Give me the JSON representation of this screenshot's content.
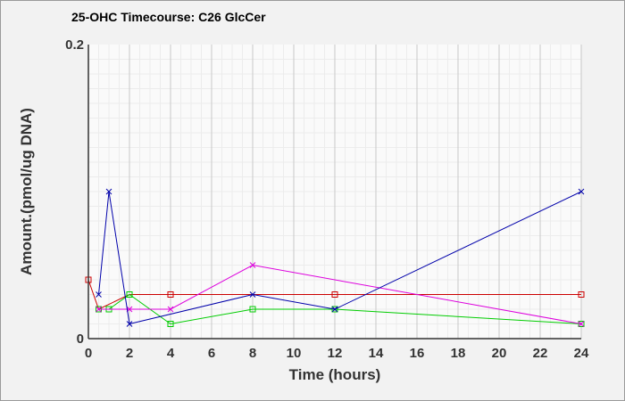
{
  "chart_data": {
    "type": "line",
    "title": "25-OHC Timecourse: C26 GlcCer",
    "xlabel": "Time (hours)",
    "ylabel": "Amount.(pmol/ug DNA)",
    "xlim": [
      0,
      24
    ],
    "ylim": [
      0,
      0.2
    ],
    "x_ticks": [
      "0",
      "2",
      "4",
      "6",
      "8",
      "10",
      "12",
      "14",
      "16",
      "18",
      "20",
      "22",
      "24"
    ],
    "y_ticks": [
      "0",
      "0.2"
    ],
    "grid": true,
    "legend": "none",
    "series": [
      {
        "color": "#cc0000",
        "marker": "square",
        "points": [
          [
            0,
            0.04
          ],
          [
            0.5,
            0.02
          ],
          [
            2,
            0.03
          ],
          [
            4,
            0.03
          ],
          [
            12,
            0.03
          ],
          [
            24,
            0.03
          ]
        ]
      },
      {
        "color": "#00cc00",
        "marker": "square",
        "points": [
          [
            0.5,
            0.02
          ],
          [
            1,
            0.02
          ],
          [
            2,
            0.03
          ],
          [
            4,
            0.01
          ],
          [
            8,
            0.02
          ],
          [
            12,
            0.02
          ],
          [
            24,
            0.01
          ]
        ]
      },
      {
        "color": "#dd00dd",
        "marker": "x",
        "points": [
          [
            0.5,
            0.02
          ],
          [
            2,
            0.02
          ],
          [
            4,
            0.02
          ],
          [
            8,
            0.05
          ],
          [
            24,
            0.01
          ]
        ]
      },
      {
        "color": "#0000aa",
        "marker": "x",
        "points": [
          [
            0.5,
            0.03
          ],
          [
            1,
            0.1
          ],
          [
            2,
            0.01
          ],
          [
            8,
            0.03
          ],
          [
            12,
            0.02
          ],
          [
            24,
            0.1
          ]
        ]
      }
    ]
  }
}
